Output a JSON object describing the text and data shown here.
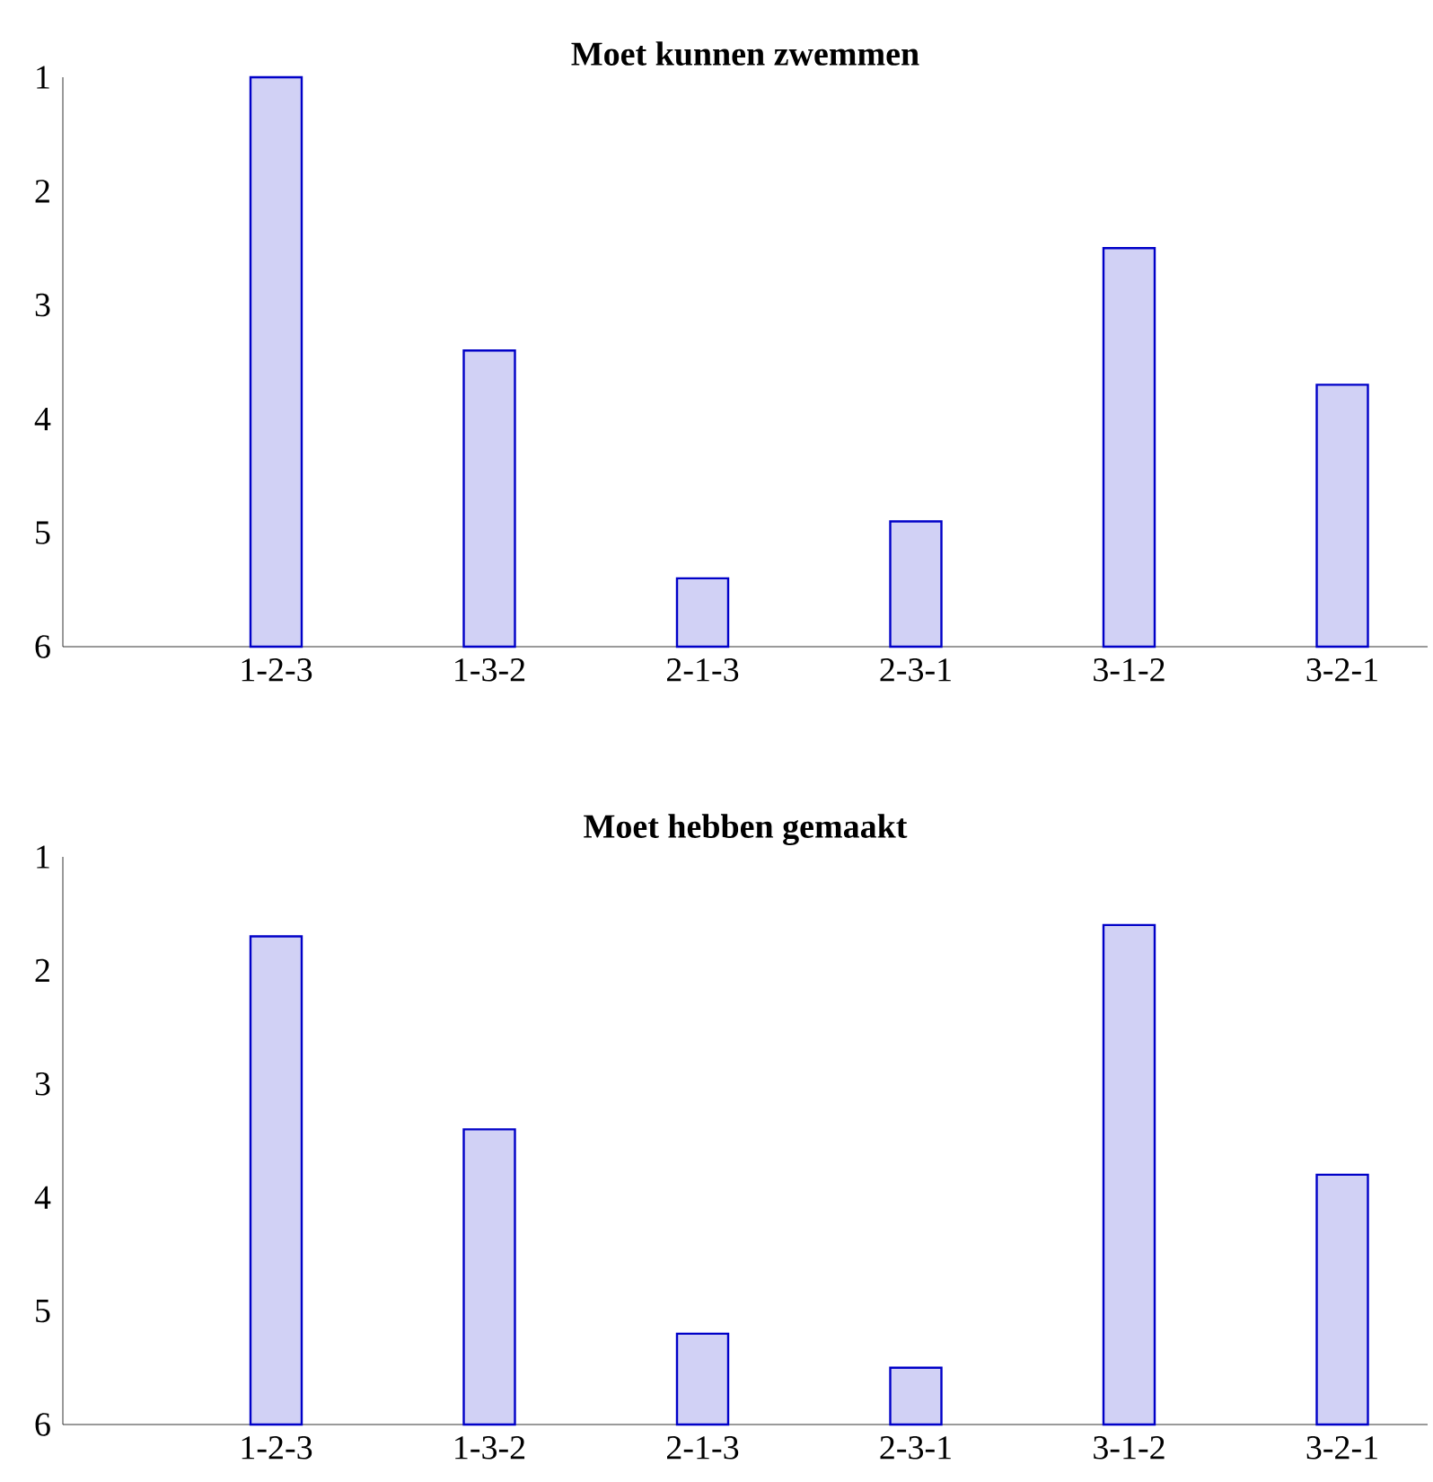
{
  "chart_data": [
    {
      "type": "bar",
      "title": "Moet kunnen zwemmen",
      "categories": [
        "1-2-3",
        "1-3-2",
        "2-1-3",
        "2-3-1",
        "3-1-2",
        "3-2-1"
      ],
      "base": [
        6,
        6,
        6,
        6,
        6,
        6
      ],
      "values": [
        -5.0,
        -2.6,
        -0.6,
        -1.1,
        -3.5,
        -2.3
      ],
      "color": "#0000c8",
      "ylim": [
        6,
        1
      ],
      "yticks": [
        1,
        2,
        3,
        4,
        5,
        6
      ]
    },
    {
      "type": "bar",
      "title": "Moet hebben gemaakt",
      "categories": [
        "1-2-3",
        "1-3-2",
        "2-1-3",
        "2-3-1",
        "3-1-2",
        "3-2-1"
      ],
      "base": [
        6,
        6,
        6,
        6,
        6,
        6
      ],
      "values": [
        -4.3,
        -2.6,
        -0.8,
        -0.5,
        -4.4,
        -2.2
      ],
      "color": "#0000c8",
      "ylim": [
        6,
        1
      ],
      "yticks": [
        1,
        2,
        3,
        4,
        5,
        6
      ]
    }
  ]
}
